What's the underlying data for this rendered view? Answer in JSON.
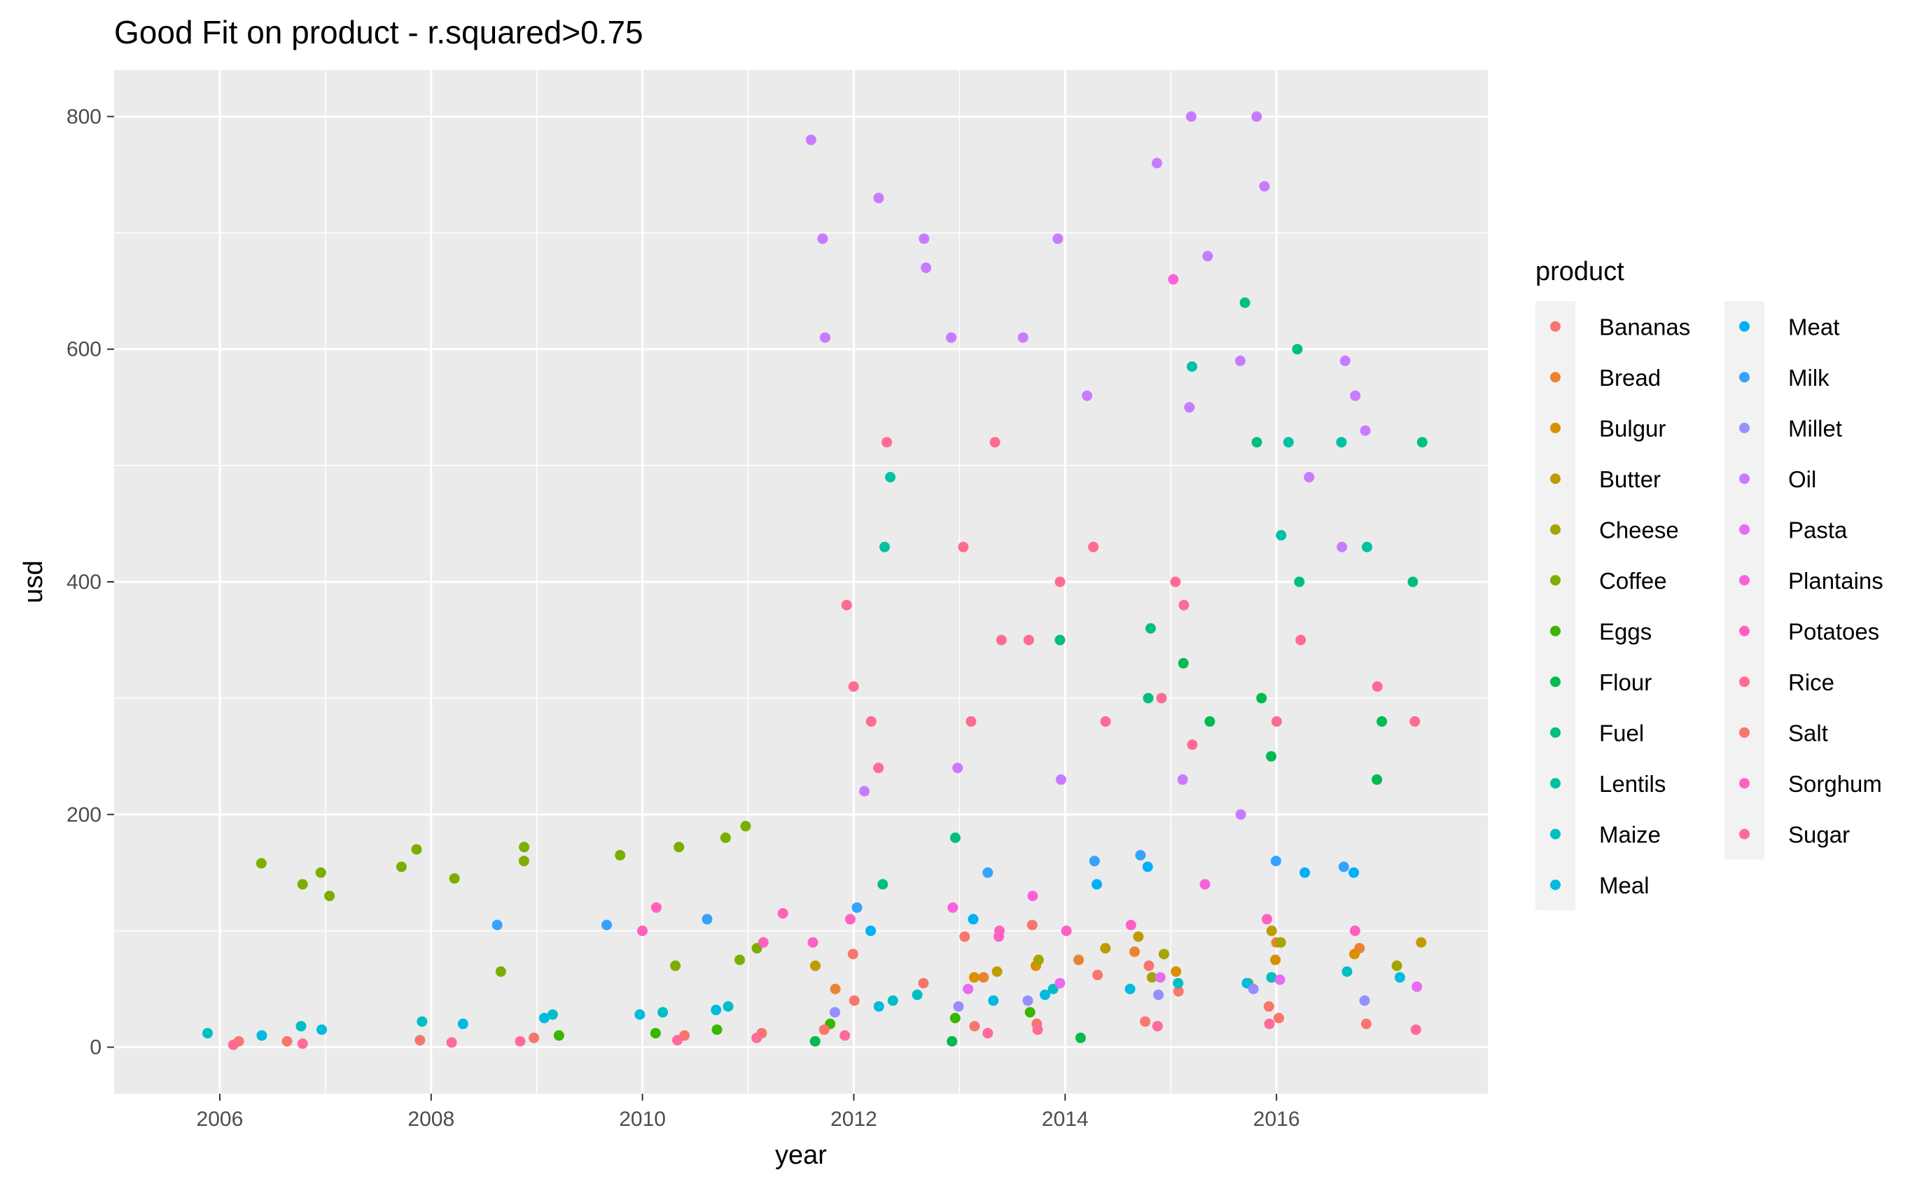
{
  "chart_data": {
    "type": "scatter",
    "title": "Good Fit on product - r.squared>0.75",
    "xlabel": "year",
    "ylabel": "usd",
    "xlim": [
      2005.0,
      2018.0
    ],
    "ylim": [
      -40,
      840
    ],
    "x_ticks": [
      2006,
      2008,
      2010,
      2012,
      2014,
      2016
    ],
    "y_ticks": [
      0,
      200,
      400,
      600,
      800
    ],
    "x_tick_labels": [
      "2006",
      "2008",
      "2010",
      "2012",
      "2014",
      "2016"
    ],
    "y_tick_labels": [
      "0",
      "200",
      "400",
      "600",
      "800"
    ],
    "grid": true,
    "jitter_width_years": 0.45,
    "legend": {
      "title": "product",
      "placement": "right",
      "columns": 2
    },
    "series": [
      {
        "name": "Bananas",
        "color": "#F8766D",
        "points": [
          [
            2012,
            80
          ],
          [
            2013,
            95
          ],
          [
            2014,
            105
          ],
          [
            2015,
            70
          ],
          [
            2016,
            60
          ],
          [
            2012,
            40
          ],
          [
            2013,
            55
          ],
          [
            2014,
            62
          ],
          [
            2015,
            48
          ],
          [
            2016,
            35
          ]
        ]
      },
      {
        "name": "Bread",
        "color": "#EA8331",
        "points": [
          [
            2012,
            50
          ],
          [
            2013,
            60
          ],
          [
            2014,
            75
          ],
          [
            2015,
            82
          ],
          [
            2016,
            90
          ],
          [
            2017,
            85
          ]
        ]
      },
      {
        "name": "Bulgur",
        "color": "#D89000",
        "points": [
          [
            2013,
            60
          ],
          [
            2014,
            70
          ],
          [
            2015,
            65
          ],
          [
            2016,
            75
          ],
          [
            2017,
            80
          ]
        ]
      },
      {
        "name": "Butter",
        "color": "#C09B00",
        "points": [
          [
            2012,
            70
          ],
          [
            2013,
            65
          ],
          [
            2014,
            85
          ],
          [
            2015,
            95
          ],
          [
            2016,
            100
          ],
          [
            2017,
            90
          ]
        ]
      },
      {
        "name": "Cheese",
        "color": "#A3A500",
        "points": [
          [
            2014,
            75
          ],
          [
            2015,
            80
          ],
          [
            2016,
            90
          ],
          [
            2017,
            70
          ],
          [
            2015,
            60
          ],
          [
            2016,
            55
          ]
        ]
      },
      {
        "name": "Coffee",
        "color": "#7CAE00",
        "points": [
          [
            2006,
            158
          ],
          [
            2007,
            150
          ],
          [
            2007,
            140
          ],
          [
            2007,
            130
          ],
          [
            2008,
            170
          ],
          [
            2008,
            155
          ],
          [
            2008,
            145
          ],
          [
            2009,
            172
          ],
          [
            2009,
            160
          ],
          [
            2009,
            65
          ],
          [
            2010,
            172
          ],
          [
            2010,
            165
          ],
          [
            2010,
            70
          ],
          [
            2011,
            190
          ],
          [
            2011,
            180
          ],
          [
            2011,
            85
          ],
          [
            2011,
            75
          ]
        ]
      },
      {
        "name": "Eggs",
        "color": "#39B600",
        "points": [
          [
            2009,
            10
          ],
          [
            2010,
            12
          ],
          [
            2011,
            15
          ],
          [
            2012,
            20
          ],
          [
            2013,
            25
          ],
          [
            2014,
            30
          ]
        ]
      },
      {
        "name": "Flour",
        "color": "#00BB4E",
        "points": [
          [
            2012,
            5
          ],
          [
            2013,
            5
          ],
          [
            2014,
            8
          ],
          [
            2015,
            330
          ],
          [
            2015,
            280
          ],
          [
            2016,
            300
          ],
          [
            2016,
            250
          ],
          [
            2017,
            280
          ],
          [
            2017,
            230
          ]
        ]
      },
      {
        "name": "Fuel",
        "color": "#00BF7D",
        "points": [
          [
            2012,
            140
          ],
          [
            2013,
            180
          ],
          [
            2014,
            350
          ],
          [
            2015,
            360
          ],
          [
            2015,
            300
          ],
          [
            2016,
            600
          ],
          [
            2016,
            640
          ],
          [
            2016,
            520
          ],
          [
            2016,
            400
          ],
          [
            2017,
            400
          ],
          [
            2017,
            520
          ]
        ]
      },
      {
        "name": "Lentils",
        "color": "#00C1A3",
        "points": [
          [
            2012,
            490
          ],
          [
            2012,
            430
          ],
          [
            2015,
            585
          ],
          [
            2016,
            520
          ],
          [
            2016,
            440
          ],
          [
            2017,
            520
          ],
          [
            2017,
            430
          ]
        ]
      },
      {
        "name": "Maize",
        "color": "#00BFC4",
        "points": [
          [
            2006,
            12
          ],
          [
            2007,
            18
          ],
          [
            2008,
            22
          ],
          [
            2009,
            28
          ],
          [
            2010,
            30
          ],
          [
            2011,
            35
          ],
          [
            2012,
            40
          ],
          [
            2013,
            45
          ],
          [
            2014,
            50
          ],
          [
            2015,
            55
          ],
          [
            2016,
            60
          ],
          [
            2017,
            65
          ]
        ]
      },
      {
        "name": "Meal",
        "color": "#00BAE0",
        "points": [
          [
            2006,
            10
          ],
          [
            2007,
            15
          ],
          [
            2008,
            20
          ],
          [
            2009,
            25
          ],
          [
            2010,
            28
          ],
          [
            2011,
            32
          ],
          [
            2012,
            35
          ],
          [
            2013,
            40
          ],
          [
            2014,
            45
          ],
          [
            2015,
            50
          ],
          [
            2016,
            55
          ],
          [
            2017,
            60
          ]
        ]
      },
      {
        "name": "Meat",
        "color": "#00B0F6",
        "points": [
          [
            2012,
            100
          ],
          [
            2013,
            110
          ],
          [
            2014,
            140
          ],
          [
            2015,
            155
          ],
          [
            2016,
            150
          ],
          [
            2017,
            150
          ]
        ]
      },
      {
        "name": "Milk",
        "color": "#35A2FF",
        "points": [
          [
            2009,
            105
          ],
          [
            2010,
            105
          ],
          [
            2011,
            110
          ],
          [
            2012,
            120
          ],
          [
            2013,
            150
          ],
          [
            2014,
            160
          ],
          [
            2015,
            165
          ],
          [
            2016,
            160
          ],
          [
            2017,
            155
          ]
        ]
      },
      {
        "name": "Millet",
        "color": "#9590FF",
        "points": [
          [
            2012,
            30
          ],
          [
            2013,
            35
          ],
          [
            2014,
            40
          ],
          [
            2015,
            45
          ],
          [
            2016,
            50
          ],
          [
            2017,
            40
          ]
        ]
      },
      {
        "name": "Oil",
        "color": "#C77CFF",
        "points": [
          [
            2012,
            730
          ],
          [
            2012,
            695
          ],
          [
            2012,
            610
          ],
          [
            2012,
            780
          ],
          [
            2012,
            220
          ],
          [
            2013,
            695
          ],
          [
            2013,
            610
          ],
          [
            2013,
            670
          ],
          [
            2013,
            240
          ],
          [
            2014,
            695
          ],
          [
            2014,
            610
          ],
          [
            2014,
            560
          ],
          [
            2014,
            230
          ],
          [
            2015,
            800
          ],
          [
            2015,
            760
          ],
          [
            2015,
            680
          ],
          [
            2015,
            550
          ],
          [
            2015,
            230
          ],
          [
            2016,
            800
          ],
          [
            2016,
            740
          ],
          [
            2016,
            590
          ],
          [
            2016,
            490
          ],
          [
            2016,
            200
          ],
          [
            2017,
            590
          ],
          [
            2017,
            560
          ],
          [
            2017,
            530
          ],
          [
            2017,
            430
          ]
        ]
      },
      {
        "name": "Pasta",
        "color": "#E76BF3",
        "points": [
          [
            2013,
            50
          ],
          [
            2014,
            55
          ],
          [
            2015,
            60
          ],
          [
            2016,
            58
          ],
          [
            2017,
            52
          ]
        ]
      },
      {
        "name": "Plantains",
        "color": "#FA62DB",
        "points": [
          [
            2015,
            660
          ],
          [
            2013,
            120
          ],
          [
            2014,
            130
          ],
          [
            2015,
            140
          ]
        ]
      },
      {
        "name": "Potatoes",
        "color": "#FF62BC",
        "points": [
          [
            2010,
            120
          ],
          [
            2010,
            100
          ],
          [
            2011,
            115
          ],
          [
            2011,
            90
          ],
          [
            2012,
            110
          ],
          [
            2013,
            100
          ]
        ]
      },
      {
        "name": "Rice",
        "color": "#FF6C91",
        "points": [
          [
            2012,
            520
          ],
          [
            2012,
            380
          ],
          [
            2012,
            310
          ],
          [
            2012,
            280
          ],
          [
            2012,
            240
          ],
          [
            2013,
            520
          ],
          [
            2013,
            430
          ],
          [
            2013,
            350
          ],
          [
            2013,
            280
          ],
          [
            2014,
            430
          ],
          [
            2014,
            400
          ],
          [
            2014,
            350
          ],
          [
            2014,
            280
          ],
          [
            2015,
            400
          ],
          [
            2015,
            380
          ],
          [
            2015,
            300
          ],
          [
            2015,
            260
          ],
          [
            2016,
            350
          ],
          [
            2016,
            280
          ],
          [
            2017,
            310
          ],
          [
            2017,
            280
          ]
        ]
      },
      {
        "name": "Salt",
        "color": "#F8766D",
        "points": [
          [
            2006,
            5
          ],
          [
            2007,
            5
          ],
          [
            2008,
            6
          ],
          [
            2009,
            8
          ],
          [
            2010,
            10
          ],
          [
            2011,
            12
          ],
          [
            2012,
            15
          ],
          [
            2013,
            18
          ],
          [
            2014,
            20
          ],
          [
            2015,
            22
          ],
          [
            2016,
            25
          ],
          [
            2017,
            20
          ]
        ]
      },
      {
        "name": "Sorghum",
        "color": "#FF61C3",
        "points": [
          [
            2012,
            90
          ],
          [
            2013,
            95
          ],
          [
            2014,
            100
          ],
          [
            2015,
            105
          ],
          [
            2016,
            110
          ],
          [
            2017,
            100
          ]
        ]
      },
      {
        "name": "Sugar",
        "color": "#FF6A98",
        "points": [
          [
            2006,
            2
          ],
          [
            2007,
            3
          ],
          [
            2008,
            4
          ],
          [
            2009,
            5
          ],
          [
            2010,
            6
          ],
          [
            2011,
            8
          ],
          [
            2012,
            10
          ],
          [
            2013,
            12
          ],
          [
            2014,
            15
          ],
          [
            2015,
            18
          ],
          [
            2016,
            20
          ],
          [
            2017,
            15
          ]
        ]
      }
    ]
  }
}
